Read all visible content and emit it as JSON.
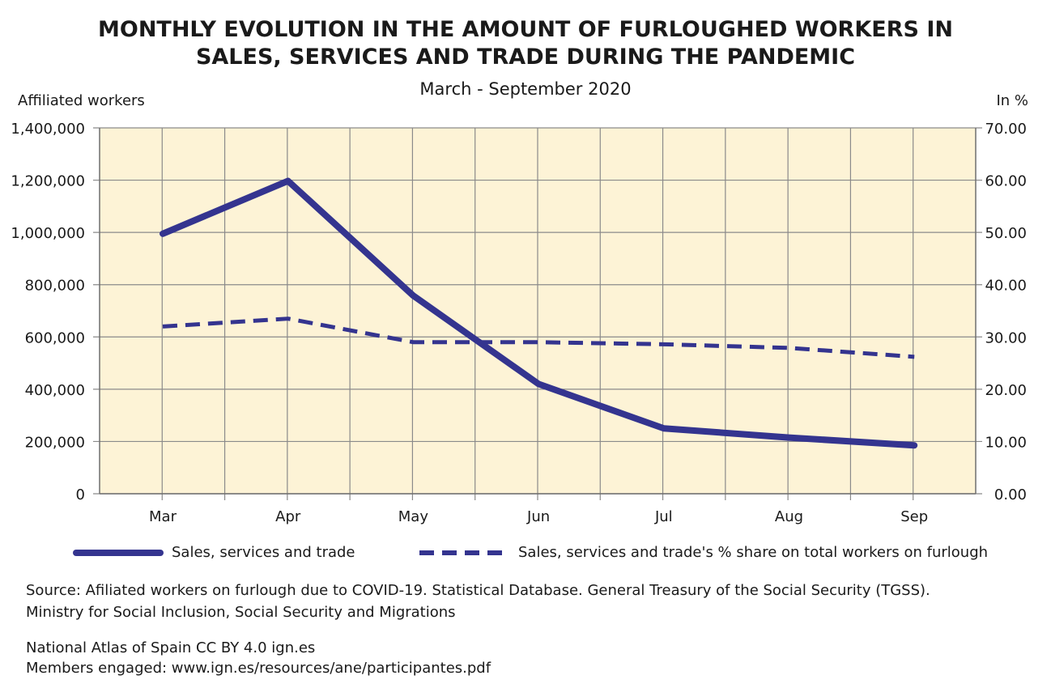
{
  "header": {
    "title_line1": "MONTHLY EVOLUTION IN THE AMOUNT OF FURLOUGHED WORKERS IN",
    "title_line2": "SALES, SERVICES AND TRADE DURING THE PANDEMIC",
    "subtitle": "March - September 2020"
  },
  "legend": {
    "solid": "Sales, services and trade",
    "dashed": "Sales, services and trade's % share on total workers on furlough"
  },
  "footer": {
    "source_line1": "Source: Afiliated workers on furlough due to COVID-19. Statistical Database. General Treasury of the Social Security (TGSS).",
    "source_line2": "Ministry for Social Inclusion, Social Security and Migrations",
    "credit_line1": "National Atlas of Spain CC BY 4.0 ign.es",
    "credit_line2": "Members engaged: www.ign.es/resources/ane/participantes.pdf"
  },
  "chart_data": {
    "type": "line",
    "title": "MONTHLY EVOLUTION IN THE AMOUNT OF FURLOUGHED WORKERS IN SALES, SERVICES AND TRADE DURING THE PANDEMIC",
    "subtitle": "March - September 2020",
    "categories": [
      "Mar",
      "Apr",
      "May",
      "Jun",
      "Jul",
      "Aug",
      "Sep"
    ],
    "ylabel": "Affiliated workers",
    "ylabel_right": "In %",
    "ylim": [
      0,
      1400000
    ],
    "ylim_right": [
      0,
      70
    ],
    "yticks": [
      "0",
      "200,000",
      "400,000",
      "600,000",
      "800,000",
      "1,000,000",
      "1,200,000",
      "1,400,000"
    ],
    "yticks_right": [
      "0.00",
      "10.00",
      "20.00",
      "30.00",
      "40.00",
      "50.00",
      "60.00",
      "70.00"
    ],
    "grid": true,
    "background_color": "#fdf3d6",
    "series": [
      {
        "name": "Sales, services and trade",
        "axis": "left",
        "style": "solid",
        "color": "#34348f",
        "values": [
          995000,
          1197000,
          758000,
          420000,
          250000,
          215000,
          185000
        ]
      },
      {
        "name": "Sales, services and trade's % share on total workers on furlough",
        "axis": "right",
        "style": "dashed",
        "color": "#34348f",
        "values": [
          32.0,
          33.5,
          29.0,
          29.0,
          28.6,
          27.9,
          26.2
        ]
      }
    ]
  }
}
